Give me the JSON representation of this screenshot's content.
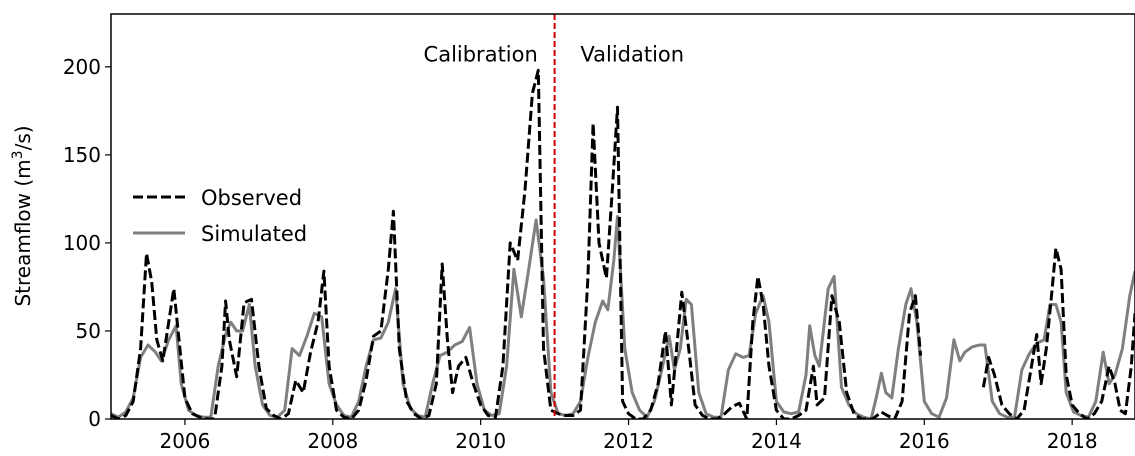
{
  "chart_data": {
    "type": "line",
    "ylabel": "Streamflow (m³/s)",
    "ylabel_parts": {
      "main": "Streamflow (m",
      "sup": "3",
      "tail": "/s)"
    },
    "xlim": [
      2005.0,
      2018.85
    ],
    "ylim": [
      0,
      230
    ],
    "x_ticks": [
      2006,
      2008,
      2010,
      2012,
      2014,
      2016,
      2018
    ],
    "y_ticks": [
      0,
      50,
      100,
      150,
      200
    ],
    "legend": {
      "placement": "center-left",
      "entries": [
        "Observed",
        "Simulated"
      ]
    },
    "split": {
      "x": 2011.0,
      "color": "#cc0000"
    },
    "annotations": [
      {
        "text": "Calibration",
        "x": 2010.0,
        "y": 203
      },
      {
        "text": "Validation",
        "x": 2012.05,
        "y": 203
      }
    ],
    "series": [
      {
        "name": "Observed",
        "color": "#000000",
        "style": "dashed",
        "points": [
          [
            2005.0,
            2
          ],
          [
            2005.1,
            0
          ],
          [
            2005.2,
            2
          ],
          [
            2005.3,
            10
          ],
          [
            2005.4,
            40
          ],
          [
            2005.48,
            94
          ],
          [
            2005.55,
            78
          ],
          [
            2005.62,
            45
          ],
          [
            2005.7,
            33
          ],
          [
            2005.78,
            55
          ],
          [
            2005.85,
            74
          ],
          [
            2005.92,
            45
          ],
          [
            2006.0,
            12
          ],
          [
            2006.1,
            3
          ],
          [
            2006.2,
            1
          ],
          [
            2006.3,
            0
          ],
          [
            2006.4,
            0
          ],
          [
            2006.5,
            30
          ],
          [
            2006.55,
            67
          ],
          [
            2006.6,
            45
          ],
          [
            2006.7,
            24
          ],
          [
            2006.8,
            66
          ],
          [
            2006.9,
            68
          ],
          [
            2007.0,
            30
          ],
          [
            2007.1,
            6
          ],
          [
            2007.2,
            2
          ],
          [
            2007.3,
            0
          ],
          [
            2007.4,
            3
          ],
          [
            2007.5,
            22
          ],
          [
            2007.6,
            15
          ],
          [
            2007.7,
            38
          ],
          [
            2007.8,
            55
          ],
          [
            2007.88,
            84
          ],
          [
            2007.95,
            30
          ],
          [
            2008.05,
            5
          ],
          [
            2008.15,
            1
          ],
          [
            2008.25,
            0
          ],
          [
            2008.35,
            5
          ],
          [
            2008.45,
            22
          ],
          [
            2008.55,
            47
          ],
          [
            2008.65,
            50
          ],
          [
            2008.75,
            85
          ],
          [
            2008.82,
            118
          ],
          [
            2008.9,
            40
          ],
          [
            2009.0,
            10
          ],
          [
            2009.1,
            3
          ],
          [
            2009.2,
            0
          ],
          [
            2009.3,
            2
          ],
          [
            2009.4,
            20
          ],
          [
            2009.48,
            88
          ],
          [
            2009.55,
            45
          ],
          [
            2009.62,
            15
          ],
          [
            2009.7,
            30
          ],
          [
            2009.8,
            35
          ],
          [
            2009.9,
            20
          ],
          [
            2010.0,
            8
          ],
          [
            2010.1,
            2
          ],
          [
            2010.2,
            1
          ],
          [
            2010.3,
            30
          ],
          [
            2010.4,
            100
          ],
          [
            2010.5,
            90
          ],
          [
            2010.6,
            130
          ],
          [
            2010.7,
            185
          ],
          [
            2010.78,
            198
          ],
          [
            2010.85,
            40
          ],
          [
            2010.95,
            5
          ],
          [
            2011.05,
            3
          ],
          [
            2011.15,
            2
          ],
          [
            2011.25,
            2
          ],
          [
            2011.35,
            5
          ],
          [
            2011.45,
            80
          ],
          [
            2011.52,
            168
          ],
          [
            2011.6,
            100
          ],
          [
            2011.7,
            80
          ],
          [
            2011.78,
            130
          ],
          [
            2011.85,
            177
          ],
          [
            2011.92,
            10
          ],
          [
            2012.0,
            3
          ],
          [
            2012.1,
            0
          ],
          [
            2012.2,
            0
          ],
          [
            2012.3,
            5
          ],
          [
            2012.4,
            20
          ],
          [
            2012.5,
            50
          ],
          [
            2012.58,
            8
          ],
          [
            2012.65,
            40
          ],
          [
            2012.72,
            72
          ],
          [
            2012.8,
            45
          ],
          [
            2012.9,
            8
          ],
          [
            2013.0,
            2
          ],
          [
            2013.1,
            0
          ],
          [
            2013.2,
            0
          ],
          [
            2013.3,
            3
          ],
          [
            2013.4,
            7
          ],
          [
            2013.5,
            9
          ],
          [
            2013.6,
            0
          ],
          [
            2013.68,
            55
          ],
          [
            2013.75,
            81
          ],
          [
            2013.82,
            65
          ],
          [
            2013.9,
            30
          ],
          [
            2014.0,
            5
          ],
          [
            2014.1,
            0
          ],
          [
            2014.2,
            0
          ],
          [
            2014.3,
            2
          ],
          [
            2014.4,
            5
          ],
          [
            2014.5,
            30
          ],
          [
            2014.55,
            8
          ],
          [
            2014.65,
            12
          ],
          [
            2014.75,
            70
          ],
          [
            2014.85,
            55
          ],
          [
            2014.95,
            15
          ],
          [
            2015.05,
            3
          ],
          [
            2015.15,
            0
          ],
          [
            2015.3,
            0
          ],
          [
            2015.42,
            4
          ],
          [
            2015.5,
            2
          ],
          [
            2015.6,
            0
          ],
          [
            2015.7,
            10
          ],
          [
            2015.8,
            60
          ],
          [
            2015.88,
            70
          ],
          [
            2015.95,
            36
          ],
          null,
          [
            2016.8,
            18
          ],
          [
            2016.87,
            35
          ],
          [
            2016.95,
            25
          ],
          [
            2017.05,
            8
          ],
          [
            2017.15,
            3
          ],
          [
            2017.25,
            0
          ],
          [
            2017.35,
            5
          ],
          [
            2017.45,
            30
          ],
          [
            2017.52,
            48
          ],
          [
            2017.58,
            20
          ],
          [
            2017.65,
            40
          ],
          [
            2017.72,
            70
          ],
          [
            2017.78,
            97
          ],
          [
            2017.85,
            85
          ],
          [
            2017.92,
            25
          ],
          [
            2018.0,
            8
          ],
          [
            2018.1,
            3
          ],
          [
            2018.2,
            0
          ],
          [
            2018.3,
            3
          ],
          [
            2018.4,
            10
          ],
          [
            2018.5,
            30
          ],
          [
            2018.58,
            20
          ],
          [
            2018.65,
            5
          ],
          [
            2018.72,
            3
          ],
          [
            2018.8,
            30
          ],
          [
            2018.85,
            60
          ]
        ]
      },
      {
        "name": "Simulated",
        "color": "#7f7f7f",
        "style": "solid",
        "points": [
          [
            2005.0,
            3
          ],
          [
            2005.1,
            1
          ],
          [
            2005.2,
            4
          ],
          [
            2005.3,
            12
          ],
          [
            2005.4,
            35
          ],
          [
            2005.5,
            42
          ],
          [
            2005.6,
            38
          ],
          [
            2005.68,
            33
          ],
          [
            2005.78,
            45
          ],
          [
            2005.88,
            53
          ],
          [
            2005.95,
            20
          ],
          [
            2006.05,
            5
          ],
          [
            2006.15,
            2
          ],
          [
            2006.25,
            1
          ],
          [
            2006.35,
            1
          ],
          [
            2006.45,
            30
          ],
          [
            2006.55,
            48
          ],
          [
            2006.62,
            55
          ],
          [
            2006.7,
            50
          ],
          [
            2006.78,
            50
          ],
          [
            2006.87,
            65
          ],
          [
            2006.95,
            30
          ],
          [
            2007.05,
            8
          ],
          [
            2007.15,
            2
          ],
          [
            2007.25,
            1
          ],
          [
            2007.35,
            5
          ],
          [
            2007.45,
            40
          ],
          [
            2007.55,
            36
          ],
          [
            2007.65,
            47
          ],
          [
            2007.75,
            60
          ],
          [
            2007.85,
            58
          ],
          [
            2007.95,
            20
          ],
          [
            2008.05,
            8
          ],
          [
            2008.15,
            2
          ],
          [
            2008.25,
            1
          ],
          [
            2008.35,
            10
          ],
          [
            2008.45,
            30
          ],
          [
            2008.55,
            45
          ],
          [
            2008.65,
            46
          ],
          [
            2008.75,
            55
          ],
          [
            2008.85,
            74
          ],
          [
            2008.95,
            20
          ],
          [
            2009.05,
            6
          ],
          [
            2009.15,
            2
          ],
          [
            2009.25,
            1
          ],
          [
            2009.35,
            20
          ],
          [
            2009.45,
            36
          ],
          [
            2009.55,
            38
          ],
          [
            2009.65,
            42
          ],
          [
            2009.75,
            44
          ],
          [
            2009.85,
            52
          ],
          [
            2009.95,
            20
          ],
          [
            2010.05,
            5
          ],
          [
            2010.15,
            2
          ],
          [
            2010.25,
            3
          ],
          [
            2010.35,
            30
          ],
          [
            2010.45,
            85
          ],
          [
            2010.55,
            58
          ],
          [
            2010.65,
            85
          ],
          [
            2010.75,
            113
          ],
          [
            2010.85,
            80
          ],
          [
            2010.95,
            15
          ],
          [
            2011.05,
            3
          ],
          [
            2011.15,
            2
          ],
          [
            2011.25,
            3
          ],
          [
            2011.35,
            10
          ],
          [
            2011.45,
            35
          ],
          [
            2011.55,
            55
          ],
          [
            2011.65,
            67
          ],
          [
            2011.72,
            62
          ],
          [
            2011.8,
            90
          ],
          [
            2011.85,
            115
          ],
          [
            2011.95,
            40
          ],
          [
            2012.05,
            15
          ],
          [
            2012.15,
            5
          ],
          [
            2012.25,
            1
          ],
          [
            2012.35,
            10
          ],
          [
            2012.45,
            28
          ],
          [
            2012.55,
            47
          ],
          [
            2012.62,
            28
          ],
          [
            2012.7,
            40
          ],
          [
            2012.78,
            68
          ],
          [
            2012.85,
            65
          ],
          [
            2012.95,
            15
          ],
          [
            2013.05,
            3
          ],
          [
            2013.15,
            1
          ],
          [
            2013.25,
            1
          ],
          [
            2013.35,
            28
          ],
          [
            2013.45,
            37
          ],
          [
            2013.55,
            35
          ],
          [
            2013.63,
            36
          ],
          [
            2013.72,
            60
          ],
          [
            2013.82,
            70
          ],
          [
            2013.9,
            55
          ],
          [
            2014.0,
            10
          ],
          [
            2014.1,
            4
          ],
          [
            2014.2,
            3
          ],
          [
            2014.3,
            4
          ],
          [
            2014.4,
            25
          ],
          [
            2014.45,
            53
          ],
          [
            2014.52,
            36
          ],
          [
            2014.58,
            30
          ],
          [
            2014.7,
            74
          ],
          [
            2014.78,
            81
          ],
          [
            2014.88,
            18
          ],
          [
            2014.98,
            8
          ],
          [
            2015.08,
            3
          ],
          [
            2015.18,
            1
          ],
          [
            2015.28,
            0
          ],
          [
            2015.35,
            12
          ],
          [
            2015.42,
            26
          ],
          [
            2015.48,
            15
          ],
          [
            2015.56,
            12
          ],
          [
            2015.65,
            40
          ],
          [
            2015.75,
            65
          ],
          [
            2015.82,
            74
          ],
          [
            2015.9,
            55
          ],
          [
            2016.0,
            10
          ],
          [
            2016.1,
            3
          ],
          [
            2016.2,
            1
          ],
          [
            2016.3,
            12
          ],
          [
            2016.4,
            45
          ],
          [
            2016.48,
            33
          ],
          [
            2016.55,
            38
          ],
          [
            2016.65,
            41
          ],
          [
            2016.75,
            42
          ],
          [
            2016.82,
            42
          ],
          [
            2016.92,
            10
          ],
          [
            2017.02,
            3
          ],
          [
            2017.12,
            1
          ],
          [
            2017.22,
            1
          ],
          [
            2017.32,
            28
          ],
          [
            2017.42,
            37
          ],
          [
            2017.52,
            43
          ],
          [
            2017.62,
            45
          ],
          [
            2017.7,
            65
          ],
          [
            2017.78,
            65
          ],
          [
            2017.85,
            55
          ],
          [
            2017.92,
            15
          ],
          [
            2018.02,
            4
          ],
          [
            2018.12,
            2
          ],
          [
            2018.22,
            1
          ],
          [
            2018.32,
            10
          ],
          [
            2018.42,
            38
          ],
          [
            2018.5,
            20
          ],
          [
            2018.58,
            25
          ],
          [
            2018.68,
            40
          ],
          [
            2018.78,
            70
          ],
          [
            2018.85,
            84
          ]
        ]
      }
    ]
  }
}
